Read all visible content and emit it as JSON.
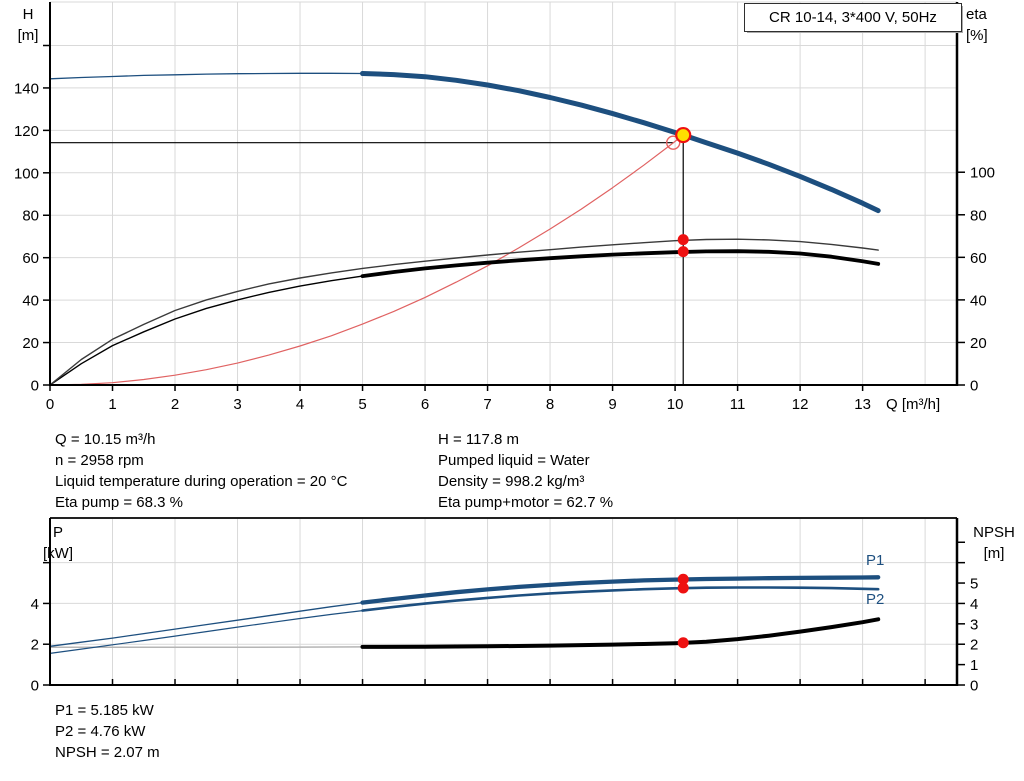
{
  "info_top": {
    "left": [
      "Q = 10.15 m³/h",
      "n = 2958 rpm",
      "Liquid temperature during operation = 20 °C",
      "Eta pump = 68.3 %"
    ],
    "right": [
      "H = 117.8 m",
      "Pumped liquid = Water",
      "Density = 998.2 kg/m³",
      "Eta pump+motor = 62.7 %"
    ]
  },
  "info_bottom": [
    "P1 = 5.185 kW",
    "P2 = 4.76 kW",
    "NPSH = 2.07 m"
  ],
  "colors": {
    "curve_blue": "#1d4f7f",
    "curve_black": "#000000",
    "curve_gray": "#3a3a3a",
    "system_red": "#e06262",
    "dot_red": "#ee1111",
    "op_yellow": "#ffdf00",
    "grid": "#d9d9d9"
  },
  "chart_data": [
    {
      "name": "hq-eta-chart",
      "type": "line",
      "title": "CR 10-14, 3*400 V, 50Hz",
      "xlabel": "Q [m³/h]",
      "xlim": [
        0,
        14.51
      ],
      "x_ticks": [
        0,
        1,
        2,
        3,
        4,
        5,
        6,
        7,
        8,
        9,
        10,
        11,
        12,
        13
      ],
      "x_grid": [
        1,
        2,
        3,
        4,
        5,
        6,
        7,
        8,
        9,
        10,
        11,
        12,
        13,
        14
      ],
      "x_tick_labels": true,
      "x_tick_dir": 1,
      "frame_top": {
        "color": "#d8d8d8",
        "width": 1
      },
      "left_axis": {
        "label_lines": [
          "H",
          "[m]"
        ],
        "lim": [
          0,
          180.5
        ],
        "ticks": [
          0,
          20,
          40,
          60,
          80,
          100,
          120,
          140
        ],
        "minor_ticks": [
          160
        ],
        "grid": [
          20,
          40,
          60,
          80,
          100,
          120,
          140,
          160
        ]
      },
      "right_axis": {
        "label_lines": [
          "eta",
          "[%]"
        ],
        "lim": [
          0,
          180
        ],
        "ticks": [
          0,
          20,
          40,
          60,
          80,
          100
        ]
      },
      "series": [
        {
          "name": "head-curve",
          "label": "H",
          "axis": "left",
          "color": "#1d4f7f",
          "width_thin": 1.3,
          "width_thick": 5,
          "thick_from": 5,
          "points": [
            [
              0,
              144.3
            ],
            [
              0.5,
              144.9
            ],
            [
              1,
              145.4
            ],
            [
              1.5,
              145.9
            ],
            [
              2,
              146.2
            ],
            [
              2.5,
              146.5
            ],
            [
              3,
              146.7
            ],
            [
              3.5,
              146.8
            ],
            [
              4,
              146.9
            ],
            [
              4.5,
              146.9
            ],
            [
              5,
              146.8
            ],
            [
              5.5,
              146.3
            ],
            [
              6,
              145.3
            ],
            [
              6.5,
              143.6
            ],
            [
              7,
              141.4
            ],
            [
              7.5,
              138.7
            ],
            [
              8,
              135.5
            ],
            [
              8.5,
              131.9
            ],
            [
              9,
              127.9
            ],
            [
              9.5,
              123.6
            ],
            [
              10,
              119.0
            ],
            [
              10.13,
              117.8
            ],
            [
              10.5,
              114.2
            ],
            [
              11,
              109.3
            ],
            [
              11.5,
              104.0
            ],
            [
              12,
              98.3
            ],
            [
              12.5,
              92.2
            ],
            [
              13,
              85.7
            ],
            [
              13.25,
              82.2
            ]
          ]
        },
        {
          "name": "eta-pump-curve",
          "label": "eta pump",
          "axis": "right",
          "color": "#3a3a3a",
          "width_thin": 1.4,
          "points": [
            [
              0,
              0
            ],
            [
              0.5,
              12
            ],
            [
              1,
              21.5
            ],
            [
              1.5,
              28.5
            ],
            [
              2,
              35
            ],
            [
              2.5,
              40
            ],
            [
              3,
              44
            ],
            [
              3.5,
              47.5
            ],
            [
              4,
              50.3
            ],
            [
              4.5,
              52.7
            ],
            [
              5,
              54.8
            ],
            [
              5.5,
              56.6
            ],
            [
              6,
              58.2
            ],
            [
              6.5,
              59.7
            ],
            [
              7,
              61.1
            ],
            [
              7.5,
              62.4
            ],
            [
              8,
              63.6
            ],
            [
              8.5,
              64.8
            ],
            [
              9,
              65.9
            ],
            [
              9.5,
              66.9
            ],
            [
              10,
              67.8
            ],
            [
              10.5,
              68.4
            ],
            [
              11,
              68.5
            ],
            [
              11.5,
              68.2
            ],
            [
              12,
              67.4
            ],
            [
              12.5,
              66.1
            ],
            [
              13,
              64.4
            ],
            [
              13.25,
              63.4
            ]
          ]
        },
        {
          "name": "eta-pump-motor-curve",
          "label": "eta pump+motor",
          "axis": "right",
          "color": "#000000",
          "width_thin": 1.4,
          "width_thick": 3.8,
          "thick_from": 5,
          "points": [
            [
              0,
              0
            ],
            [
              0.5,
              10
            ],
            [
              1,
              18.5
            ],
            [
              1.5,
              25
            ],
            [
              2,
              31
            ],
            [
              2.5,
              36
            ],
            [
              3,
              40
            ],
            [
              3.5,
              43.5
            ],
            [
              4,
              46.5
            ],
            [
              4.5,
              49
            ],
            [
              5,
              51.2
            ],
            [
              5.5,
              53.1
            ],
            [
              6,
              54.8
            ],
            [
              6.5,
              56.2
            ],
            [
              7,
              57.5
            ],
            [
              7.5,
              58.6
            ],
            [
              8,
              59.6
            ],
            [
              8.5,
              60.5
            ],
            [
              9,
              61.3
            ],
            [
              9.5,
              61.9
            ],
            [
              10,
              62.4
            ],
            [
              10.5,
              62.8
            ],
            [
              11,
              62.9
            ],
            [
              11.5,
              62.6
            ],
            [
              12,
              61.8
            ],
            [
              12.5,
              60.3
            ],
            [
              13,
              58.2
            ],
            [
              13.25,
              56.9
            ]
          ]
        },
        {
          "name": "system-curve",
          "label": "system",
          "axis": "left",
          "color": "#e06262",
          "width_thin": 1.2,
          "points": [
            [
              0,
              0
            ],
            [
              0.5,
              0.3
            ],
            [
              1,
              1.1
            ],
            [
              1.5,
              2.6
            ],
            [
              2,
              4.6
            ],
            [
              2.5,
              7.2
            ],
            [
              3,
              10.3
            ],
            [
              3.5,
              14.1
            ],
            [
              4,
              18.4
            ],
            [
              4.5,
              23.2
            ],
            [
              5,
              28.7
            ],
            [
              5.5,
              34.7
            ],
            [
              6,
              41.3
            ],
            [
              6.5,
              48.5
            ],
            [
              7,
              56.2
            ],
            [
              7.5,
              64.6
            ],
            [
              8,
              73.5
            ],
            [
              8.5,
              82.9
            ],
            [
              9,
              93.0
            ],
            [
              9.5,
              103.6
            ],
            [
              9.97,
              114.1
            ],
            [
              10.13,
              117.8
            ]
          ]
        }
      ],
      "annotations": {
        "duty_vline": {
          "q": 10.13,
          "from": 117.8,
          "to": 0
        },
        "duty_hline": {
          "v": 114.2,
          "to_q": 9.97
        },
        "markers": [
          {
            "name": "requested-duty-point",
            "q": 9.97,
            "v": 114.2,
            "axis": "left",
            "r": 6.5,
            "fill": "none",
            "stroke": "#e86060",
            "stroke_width": 1.4
          },
          {
            "name": "operating-point",
            "q": 10.13,
            "v": 117.8,
            "axis": "left",
            "r": 7,
            "fill": "#ffdf00",
            "stroke": "#ee1111",
            "stroke_width": 2.2
          },
          {
            "name": "eta-pump-point",
            "q": 10.13,
            "v": 68.3,
            "axis": "right",
            "r": 5.5,
            "fill": "#ee1111"
          },
          {
            "name": "eta-pump-motor-point",
            "q": 10.13,
            "v": 62.7,
            "axis": "right",
            "r": 5.5,
            "fill": "#ee1111"
          }
        ]
      }
    },
    {
      "name": "power-npsh-chart",
      "type": "line",
      "xlabel": "",
      "xlim": [
        0,
        14.51
      ],
      "x_ticks": [
        1,
        2,
        3,
        4,
        5,
        6,
        7,
        8,
        9,
        10,
        11,
        12,
        13,
        14
      ],
      "x_grid": [
        1,
        2,
        3,
        4,
        5,
        6,
        7,
        8,
        9,
        10,
        11,
        12,
        13,
        14
      ],
      "x_tick_labels": false,
      "x_tick_dir": -1,
      "frame_top": {
        "color": "#222222",
        "width": 2
      },
      "left_axis": {
        "label_lines": [
          "P",
          "[kW]"
        ],
        "lim": [
          0,
          8.19
        ],
        "ticks": [
          0,
          2,
          4
        ],
        "minor_ticks": [
          6
        ],
        "grid": [
          2,
          4,
          6
        ]
      },
      "right_axis": {
        "label_lines": [
          "NPSH",
          "[m]"
        ],
        "lim": [
          0,
          8.19
        ],
        "ticks": [
          0,
          1,
          2,
          3,
          4,
          5
        ],
        "minor_ticks": [
          6,
          7
        ]
      },
      "series": [
        {
          "name": "p1-curve",
          "label": "P1",
          "axis": "left",
          "color": "#1d4f7f",
          "width_thin": 1.3,
          "width_thick": 4.3,
          "thick_from": 5,
          "points": [
            [
              0,
              1.9
            ],
            [
              0.5,
              2.1
            ],
            [
              1,
              2.3
            ],
            [
              1.5,
              2.52
            ],
            [
              2,
              2.74
            ],
            [
              2.5,
              2.96
            ],
            [
              3,
              3.18
            ],
            [
              3.5,
              3.4
            ],
            [
              4,
              3.62
            ],
            [
              4.5,
              3.84
            ],
            [
              5,
              4.04
            ],
            [
              5.5,
              4.22
            ],
            [
              6,
              4.39
            ],
            [
              6.5,
              4.55
            ],
            [
              7,
              4.69
            ],
            [
              7.5,
              4.81
            ],
            [
              8,
              4.91
            ],
            [
              8.5,
              5.0
            ],
            [
              9,
              5.07
            ],
            [
              9.5,
              5.13
            ],
            [
              10,
              5.17
            ],
            [
              10.5,
              5.2
            ],
            [
              11,
              5.22
            ],
            [
              11.5,
              5.24
            ],
            [
              12,
              5.25
            ],
            [
              12.5,
              5.26
            ],
            [
              13,
              5.27
            ],
            [
              13.25,
              5.28
            ]
          ]
        },
        {
          "name": "p2-curve",
          "label": "P2",
          "axis": "left",
          "color": "#1d4f7f",
          "width_thin": 1.2,
          "width_thick": 2.6,
          "thick_from": 5,
          "points": [
            [
              0,
              1.55
            ],
            [
              0.5,
              1.76
            ],
            [
              1,
              1.97
            ],
            [
              1.5,
              2.18
            ],
            [
              2,
              2.4
            ],
            [
              2.5,
              2.62
            ],
            [
              3,
              2.84
            ],
            [
              3.5,
              3.05
            ],
            [
              4,
              3.26
            ],
            [
              4.5,
              3.46
            ],
            [
              5,
              3.65
            ],
            [
              5.5,
              3.83
            ],
            [
              6,
              3.99
            ],
            [
              6.5,
              4.14
            ],
            [
              7,
              4.27
            ],
            [
              7.5,
              4.39
            ],
            [
              8,
              4.49
            ],
            [
              8.5,
              4.57
            ],
            [
              9,
              4.64
            ],
            [
              9.5,
              4.7
            ],
            [
              10,
              4.74
            ],
            [
              10.5,
              4.77
            ],
            [
              11,
              4.78
            ],
            [
              11.5,
              4.78
            ],
            [
              12,
              4.77
            ],
            [
              12.5,
              4.75
            ],
            [
              13,
              4.72
            ],
            [
              13.25,
              4.7
            ]
          ]
        },
        {
          "name": "npsh-curve",
          "label": "NPSH",
          "axis": "right",
          "color": "#000000",
          "width_thin": 1.5,
          "width_thick": 4,
          "thick_from": 5,
          "thin_color": "#b5b5b5",
          "points": [
            [
              0,
              1.85
            ],
            [
              1,
              1.85
            ],
            [
              2,
              1.85
            ],
            [
              3,
              1.85
            ],
            [
              4,
              1.86
            ],
            [
              5,
              1.87
            ],
            [
              6,
              1.88
            ],
            [
              7,
              1.9
            ],
            [
              8,
              1.93
            ],
            [
              9,
              1.98
            ],
            [
              9.5,
              2.01
            ],
            [
              10,
              2.05
            ],
            [
              10.5,
              2.12
            ],
            [
              11,
              2.25
            ],
            [
              11.5,
              2.42
            ],
            [
              12,
              2.62
            ],
            [
              12.5,
              2.84
            ],
            [
              13,
              3.08
            ],
            [
              13.25,
              3.22
            ]
          ]
        }
      ],
      "annotations": {
        "markers": [
          {
            "name": "p1-point",
            "q": 10.13,
            "v": 5.185,
            "axis": "left",
            "r": 5.5,
            "fill": "#ee1111"
          },
          {
            "name": "p2-point",
            "q": 10.13,
            "v": 4.76,
            "axis": "left",
            "r": 5.5,
            "fill": "#ee1111"
          },
          {
            "name": "npsh-point",
            "q": 10.13,
            "v": 2.07,
            "axis": "right",
            "r": 5.5,
            "fill": "#ee1111"
          }
        ]
      }
    }
  ]
}
